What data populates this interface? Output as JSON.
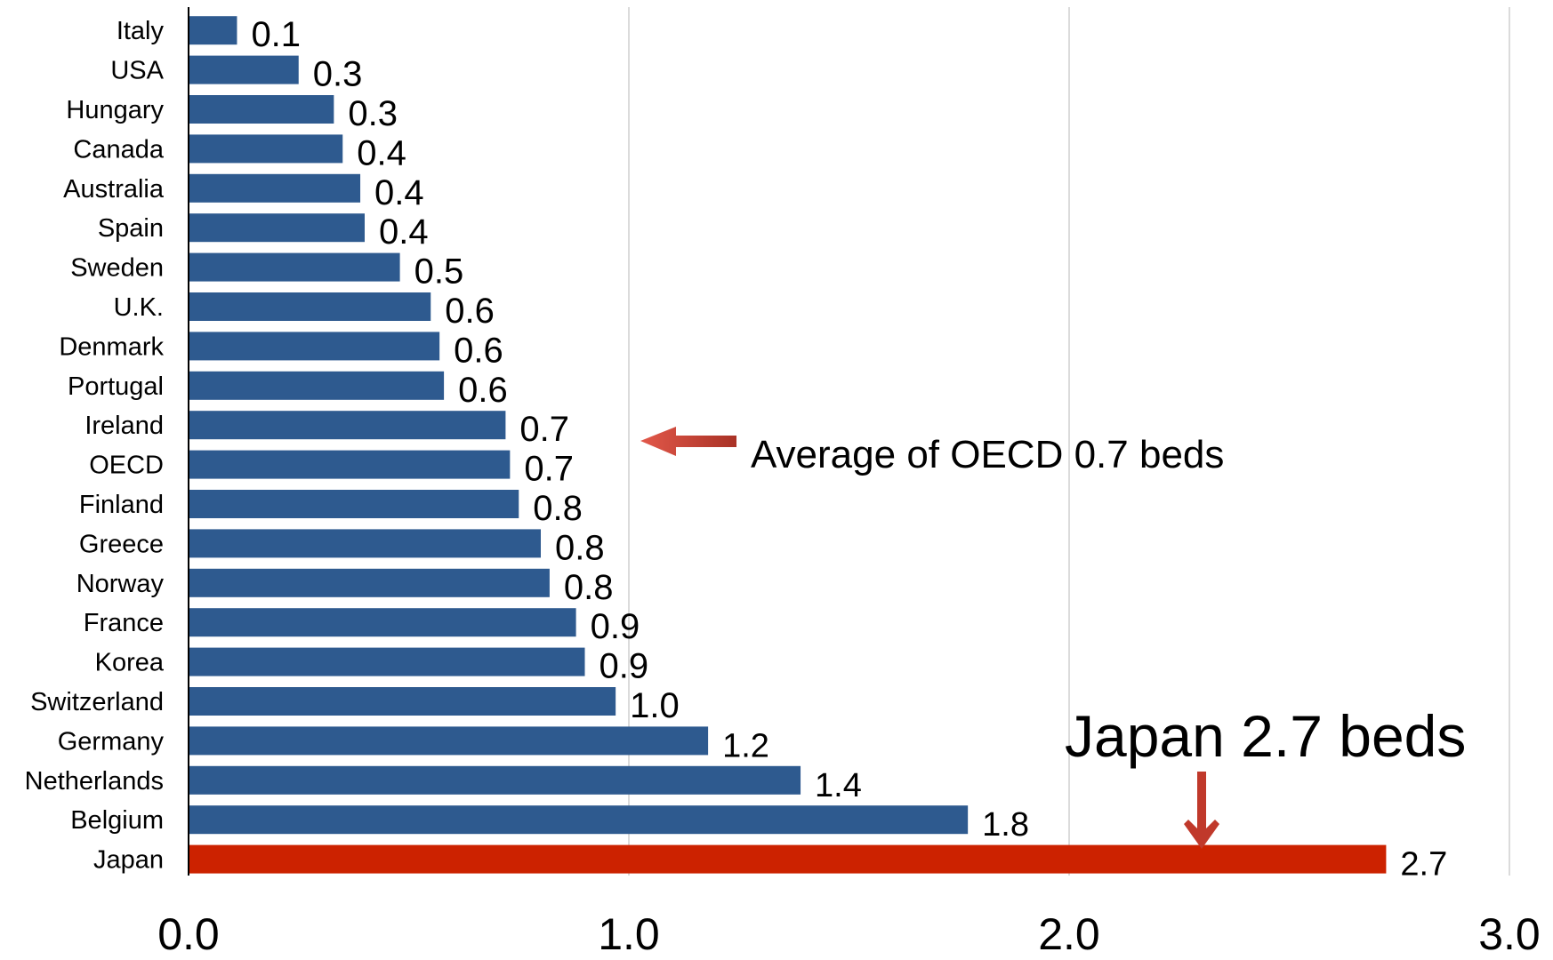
{
  "chart_data": {
    "type": "bar",
    "orientation": "horizontal",
    "categories": [
      "Italy",
      "USA",
      "Hungary",
      "Canada",
      "Australia",
      "Spain",
      "Sweden",
      "U.K.",
      "Denmark",
      "Portugal",
      "Ireland",
      "OECD",
      "Finland",
      "Greece",
      "Norway",
      "France",
      "Korea",
      "Switzerland",
      "Germany",
      "Netherlands",
      "Belgium",
      "Japan"
    ],
    "values": [
      0.11,
      0.25,
      0.33,
      0.35,
      0.39,
      0.4,
      0.48,
      0.55,
      0.57,
      0.58,
      0.72,
      0.73,
      0.75,
      0.8,
      0.82,
      0.88,
      0.9,
      0.97,
      1.18,
      1.39,
      1.77,
      2.72
    ],
    "value_labels": [
      "0.1",
      "0.3",
      "0.3",
      "0.4",
      "0.4",
      "0.4",
      "0.5",
      "0.6",
      "0.6",
      "0.6",
      "0.7",
      "0.7",
      "0.8",
      "0.8",
      "0.8",
      "0.9",
      "0.9",
      "1.0",
      "1.2",
      "1.4",
      "1.8",
      "2.7"
    ],
    "highlight_category": "Japan",
    "xlim": [
      0,
      3
    ],
    "xticks": [
      "0.0",
      "1.0",
      "2.0",
      "3.0"
    ],
    "grid": "vertical",
    "title": "",
    "xlabel": "",
    "ylabel": "",
    "colors": {
      "bar": "#2e5a8f",
      "highlight_bar": "#cc2200",
      "arrow": "#c0392b",
      "grid": "#cfcfcf",
      "axis": "#000000",
      "text": "#000000"
    },
    "annotations": {
      "oecd": "Average of OECD  0.7 beds",
      "japan": "Japan  2.7 beds"
    }
  }
}
